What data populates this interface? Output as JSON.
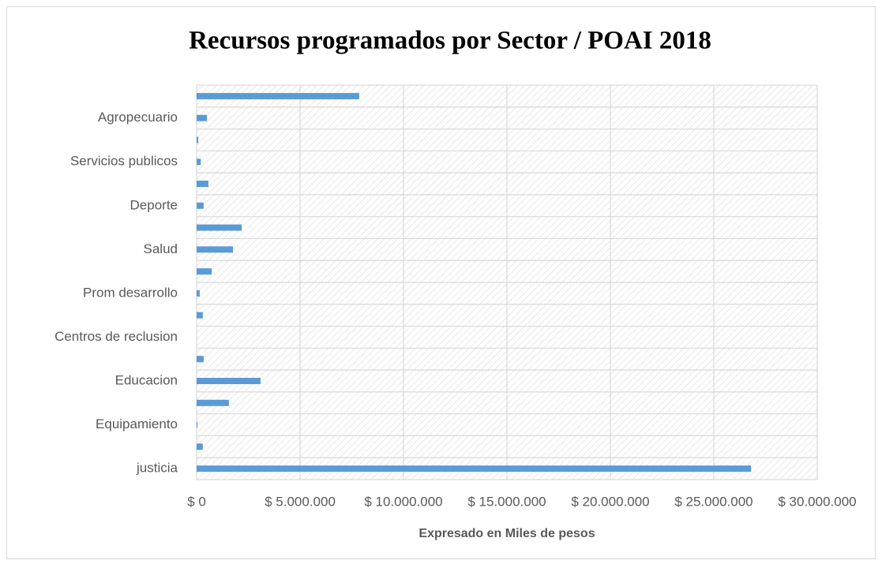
{
  "chart_data": {
    "type": "bar",
    "orientation": "horizontal",
    "title": "Recursos programados por Sector / POAI 2018",
    "x_label": "Expresado en Miles de pesos",
    "categories": [
      "justicia",
      null,
      "Equipamiento",
      null,
      "Educacion",
      null,
      "Centros de reclusion",
      null,
      "Prom desarrollo",
      null,
      "Salud",
      null,
      "Deporte",
      null,
      "Servicios publicos",
      null,
      "Agropecuario",
      null
    ],
    "values": [
      26800000,
      300000,
      40000,
      1560000,
      3090000,
      340000,
      0,
      300000,
      150000,
      730000,
      1760000,
      2180000,
      340000,
      570000,
      200000,
      80000,
      500000,
      7860000
    ],
    "color": "#5b9bd5",
    "xlim": [
      0,
      30000000
    ],
    "xticks": [
      {
        "value": 0,
        "label": "$ 0"
      },
      {
        "value": 5000000,
        "label": "$ 5.000.000"
      },
      {
        "value": 10000000,
        "label": "$ 10.000.000"
      },
      {
        "value": 15000000,
        "label": "$ 15.000.000"
      },
      {
        "value": 20000000,
        "label": "$ 20.000.000"
      },
      {
        "value": 25000000,
        "label": "$ 25.000.000"
      },
      {
        "value": 30000000,
        "label": "$ 30.000.000"
      }
    ],
    "grid": true
  }
}
